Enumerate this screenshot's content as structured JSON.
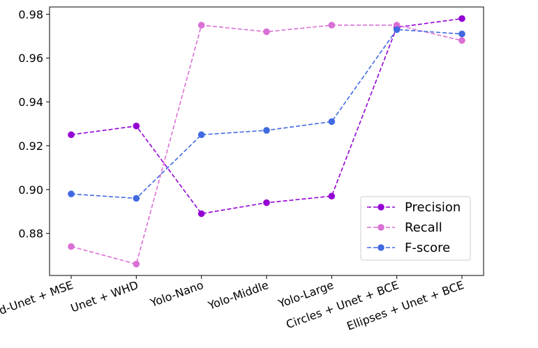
{
  "chart_data": {
    "type": "line",
    "categories": [
      "Boosted-Unet + MSE",
      "Unet + WHD",
      "Yolo-Nano",
      "Yolo-Middle",
      "Yolo-Large",
      "Circles + Unet + BCE",
      "Ellipses + Unet + BCE"
    ],
    "series": [
      {
        "name": "Precision",
        "color": "#9400D3",
        "values": [
          0.925,
          0.929,
          0.889,
          0.894,
          0.897,
          0.974,
          0.978
        ]
      },
      {
        "name": "Recall",
        "color": "#DA70D6",
        "values": [
          0.874,
          0.866,
          0.975,
          0.972,
          0.975,
          0.975,
          0.968
        ]
      },
      {
        "name": "F-score",
        "color": "#4169E1",
        "values": [
          0.898,
          0.896,
          0.925,
          0.927,
          0.931,
          0.973,
          0.971
        ]
      }
    ],
    "yticks": [
      "0.88",
      "0.90",
      "0.92",
      "0.94",
      "0.96",
      "0.98"
    ],
    "ylim": [
      0.8608,
      0.9833
    ],
    "line_style": "dashed",
    "marker": "circle",
    "grid": false,
    "legend_position": "lower-right"
  }
}
